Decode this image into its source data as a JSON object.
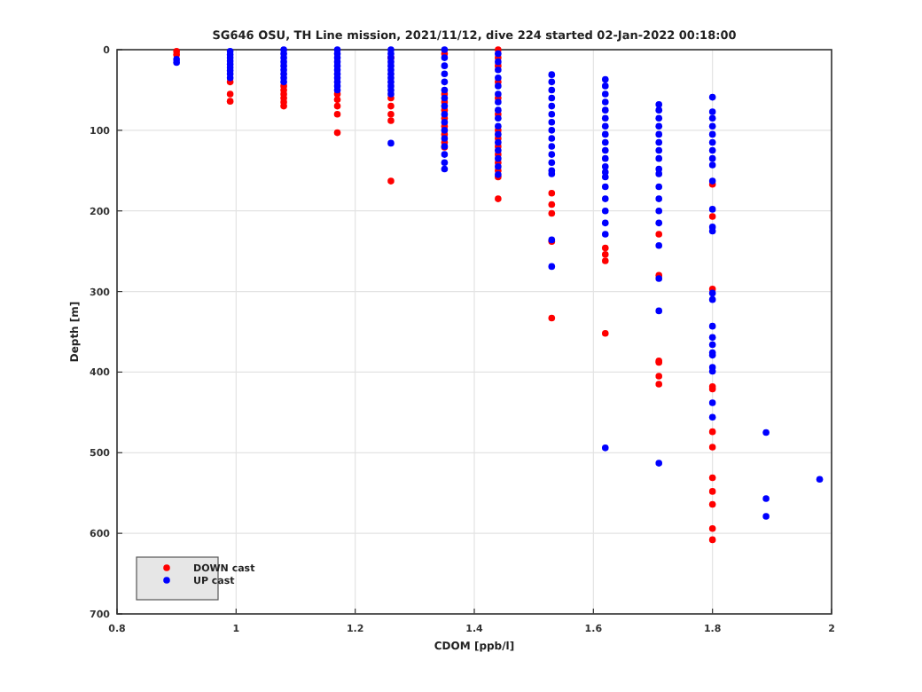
{
  "chart_data": {
    "type": "scatter",
    "title": "SG646 OSU, TH Line mission, 2021/11/12, dive 224 started 02-Jan-2022 00:18:00",
    "xlabel": "CDOM [ppb/l]",
    "ylabel": "Depth [m]",
    "xlim": [
      0.8,
      2
    ],
    "xticks": [
      0.8,
      1,
      1.2,
      1.4,
      1.6,
      1.8,
      2
    ],
    "ylim": [
      700,
      0
    ],
    "yticks": [
      0,
      100,
      200,
      300,
      400,
      500,
      600,
      700
    ],
    "grid": true,
    "legend": "bottom left",
    "marker": "circle",
    "series": [
      {
        "name": "DOWN cast",
        "color": "#ff0000",
        "x": [
          0.9,
          0.9,
          0.99,
          0.99,
          0.99,
          1.08,
          1.08,
          1.08,
          1.08,
          1.08,
          1.08,
          1.17,
          1.17,
          1.17,
          1.17,
          1.17,
          1.26,
          1.26,
          1.26,
          1.26,
          1.26,
          1.26,
          1.35,
          1.35,
          1.35,
          1.35,
          1.35,
          1.35,
          1.35,
          1.35,
          1.35,
          1.44,
          1.44,
          1.44,
          1.44,
          1.44,
          1.44,
          1.44,
          1.44,
          1.44,
          1.44,
          1.44,
          1.44,
          1.44,
          1.44,
          1.53,
          1.53,
          1.53,
          1.53,
          1.53,
          1.62,
          1.62,
          1.62,
          1.62,
          1.71,
          1.71,
          1.71,
          1.71,
          1.71,
          1.71,
          1.8,
          1.8,
          1.8,
          1.8,
          1.8,
          1.8,
          1.8,
          1.8,
          1.8,
          1.8,
          1.8,
          1.8
        ],
        "values": [
          2,
          6,
          40,
          55,
          64,
          45,
          50,
          55,
          60,
          65,
          70,
          55,
          62,
          70,
          80,
          103,
          10,
          60,
          70,
          80,
          88,
          163,
          5,
          55,
          65,
          75,
          85,
          95,
          105,
          115,
          121,
          0,
          10,
          20,
          40,
          60,
          80,
          100,
          110,
          120,
          130,
          140,
          150,
          158,
          185,
          178,
          192,
          203,
          238,
          333,
          246,
          254,
          262,
          352,
          229,
          280,
          386,
          388,
          405,
          415,
          167,
          207,
          297,
          418,
          421,
          474,
          493,
          531,
          548,
          564,
          594,
          608
        ]
      },
      {
        "name": "UP cast",
        "color": "#0000ff",
        "x": [
          0.9,
          0.9,
          0.99,
          0.99,
          0.99,
          0.99,
          0.99,
          0.99,
          0.99,
          0.99,
          0.99,
          1.08,
          1.08,
          1.08,
          1.08,
          1.08,
          1.08,
          1.08,
          1.08,
          1.08,
          1.17,
          1.17,
          1.17,
          1.17,
          1.17,
          1.17,
          1.17,
          1.17,
          1.17,
          1.17,
          1.17,
          1.26,
          1.26,
          1.26,
          1.26,
          1.26,
          1.26,
          1.26,
          1.26,
          1.26,
          1.26,
          1.26,
          1.26,
          1.26,
          1.35,
          1.35,
          1.35,
          1.35,
          1.35,
          1.35,
          1.35,
          1.35,
          1.35,
          1.35,
          1.35,
          1.35,
          1.35,
          1.35,
          1.35,
          1.35,
          1.44,
          1.44,
          1.44,
          1.44,
          1.44,
          1.44,
          1.44,
          1.44,
          1.44,
          1.44,
          1.44,
          1.44,
          1.44,
          1.44,
          1.44,
          1.44,
          1.53,
          1.53,
          1.53,
          1.53,
          1.53,
          1.53,
          1.53,
          1.53,
          1.53,
          1.53,
          1.53,
          1.53,
          1.53,
          1.53,
          1.53,
          1.53,
          1.62,
          1.62,
          1.62,
          1.62,
          1.62,
          1.62,
          1.62,
          1.62,
          1.62,
          1.62,
          1.62,
          1.62,
          1.62,
          1.62,
          1.62,
          1.62,
          1.62,
          1.62,
          1.62,
          1.62,
          1.71,
          1.71,
          1.71,
          1.71,
          1.71,
          1.71,
          1.71,
          1.71,
          1.71,
          1.71,
          1.71,
          1.71,
          1.71,
          1.71,
          1.71,
          1.71,
          1.71,
          1.71,
          1.8,
          1.8,
          1.8,
          1.8,
          1.8,
          1.8,
          1.8,
          1.8,
          1.8,
          1.8,
          1.8,
          1.8,
          1.8,
          1.8,
          1.8,
          1.8,
          1.8,
          1.8,
          1.8,
          1.8,
          1.8,
          1.8,
          1.8,
          1.8,
          1.89,
          1.89,
          1.89,
          1.98
        ],
        "values": [
          12,
          16,
          2,
          6,
          10,
          14,
          18,
          22,
          26,
          30,
          35,
          0,
          5,
          10,
          15,
          20,
          25,
          30,
          35,
          40,
          0,
          5,
          10,
          15,
          20,
          25,
          30,
          35,
          40,
          45,
          50,
          0,
          5,
          10,
          15,
          20,
          25,
          30,
          35,
          40,
          45,
          50,
          55,
          116,
          0,
          10,
          20,
          30,
          40,
          50,
          60,
          70,
          80,
          90,
          100,
          110,
          120,
          130,
          140,
          148,
          5,
          15,
          25,
          35,
          45,
          55,
          65,
          75,
          85,
          95,
          105,
          115,
          125,
          135,
          145,
          155,
          31,
          40,
          50,
          60,
          70,
          80,
          90,
          100,
          110,
          120,
          130,
          140,
          150,
          154,
          236,
          269,
          37,
          45,
          55,
          65,
          75,
          85,
          95,
          105,
          115,
          125,
          135,
          145,
          152,
          158,
          170,
          185,
          200,
          215,
          229,
          494,
          68,
          75,
          85,
          95,
          105,
          115,
          125,
          135,
          148,
          154,
          170,
          185,
          200,
          215,
          243,
          284,
          324,
          513,
          59,
          77,
          85,
          95,
          105,
          115,
          125,
          135,
          143,
          163,
          198,
          220,
          225,
          302,
          310,
          343,
          357,
          366,
          376,
          379,
          394,
          399,
          438,
          456,
          475,
          557,
          579,
          533
        ]
      }
    ]
  }
}
